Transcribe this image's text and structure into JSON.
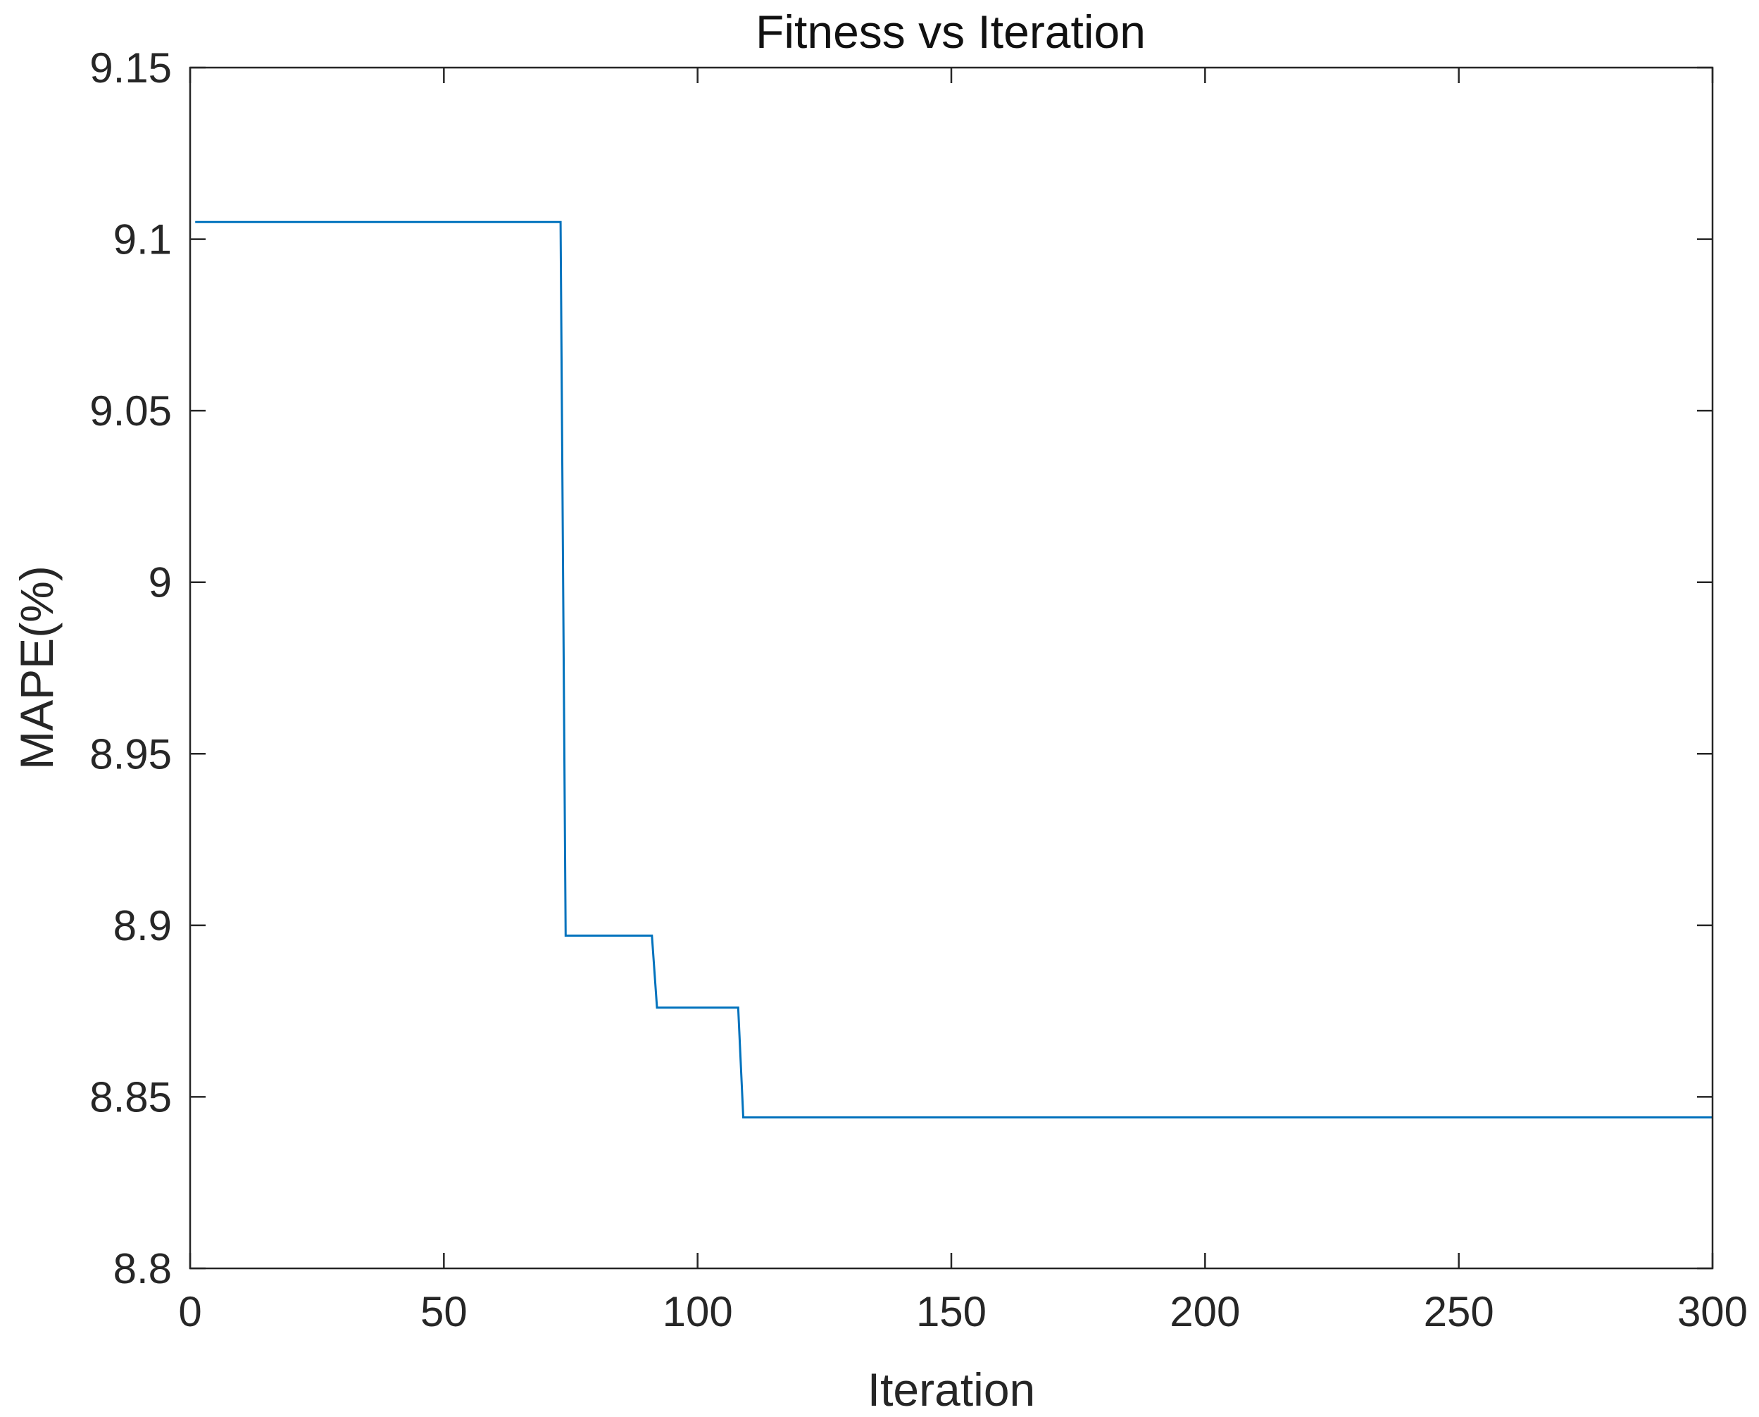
{
  "chart_data": {
    "type": "line",
    "title": "Fitness vs Iteration",
    "xlabel": "Iteration",
    "ylabel": "MAPE(%)",
    "xlim": [
      0,
      300
    ],
    "ylim": [
      8.8,
      9.15
    ],
    "xticks": [
      0,
      50,
      100,
      150,
      200,
      250,
      300
    ],
    "xtick_labels": [
      "0",
      "50",
      "100",
      "150",
      "200",
      "250",
      "300"
    ],
    "yticks": [
      8.8,
      8.85,
      8.9,
      8.95,
      9.0,
      9.05,
      9.1,
      9.15
    ],
    "ytick_labels": [
      "8.8",
      "8.85",
      "8.9",
      "8.95",
      "9",
      "9.05",
      "9.1",
      "9.15"
    ],
    "grid": false,
    "line_color": "#0072BD",
    "series": [
      {
        "x": [
          1,
          73,
          74,
          91,
          92,
          108,
          109,
          300
        ],
        "y": [
          9.105,
          9.105,
          8.897,
          8.897,
          8.876,
          8.876,
          8.844,
          8.844
        ]
      }
    ]
  }
}
